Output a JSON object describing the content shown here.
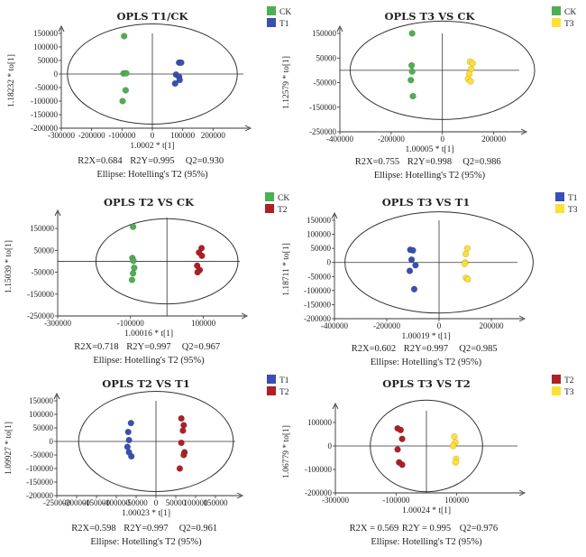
{
  "chart_data": [
    {
      "type": "scatter",
      "title": "OPLS  T1/CK",
      "xlabel": "1.0002 * t[1]",
      "ylabel": "1.18232 * to[1]",
      "xlim": [
        -300000,
        300000
      ],
      "ylim": [
        -200000,
        150000
      ],
      "xticks": [
        -300000,
        -200000,
        -100000,
        0,
        100000,
        200000
      ],
      "xtick_labels": [
        "-300000",
        "-200000",
        "-100000",
        "0",
        "100000",
        "200000"
      ],
      "yticks": [
        150000,
        100000,
        50000,
        0,
        -50000,
        -100000,
        -150000,
        -200000
      ],
      "ytick_labels": [
        "150000",
        "100000",
        "50000",
        "0",
        "-50000",
        "-100000",
        "-150000",
        "-200000"
      ],
      "ellipse": {
        "rx": 280000,
        "ry": 185000
      },
      "stats": [
        "R2X=0.684",
        "R2Y=0.995",
        "Q2=0.930"
      ],
      "ellipse_label": "Ellipse: Hotelling's T2 (95%)",
      "legend_position": "top-right",
      "series": [
        {
          "name": "CK",
          "color": "#4caf50",
          "points": [
            [
              -93000,
              140000
            ],
            [
              -95000,
              2000
            ],
            [
              -86000,
              3000
            ],
            [
              -88000,
              -60000
            ],
            [
              -98000,
              -100000
            ]
          ]
        },
        {
          "name": "T1",
          "color": "#3a4fb5",
          "points": [
            [
              88000,
              42000
            ],
            [
              95000,
              42000
            ],
            [
              78000,
              -2000
            ],
            [
              88000,
              -10000
            ],
            [
              90000,
              -22000
            ],
            [
              75000,
              -35000
            ]
          ]
        }
      ]
    },
    {
      "type": "scatter",
      "title": "OPLS T3 VS CK",
      "xlabel": "1.00005 * t[1]",
      "ylabel": "1.12579 * to[1]",
      "xlim": [
        -400000,
        300000
      ],
      "ylim": [
        -250000,
        150000
      ],
      "xticks": [
        -400000,
        -200000,
        0,
        200000
      ],
      "xtick_labels": [
        "-400000",
        "-200000",
        "0",
        "200000"
      ],
      "yticks": [
        150000,
        50000,
        -50000,
        -150000,
        -250000
      ],
      "ytick_labels": [
        "150000",
        "50000",
        "-50000",
        "-150000",
        "-250000"
      ],
      "ellipse": {
        "rx": 360000,
        "ry": 200000
      },
      "stats": [
        "R2X=0.755",
        "R2Y=0.998",
        "Q2=0.986"
      ],
      "ellipse_label": "Ellipse: Hotelling's T2 (95%)",
      "legend_position": "top-right",
      "series": [
        {
          "name": "CK",
          "color": "#4caf50",
          "points": [
            [
              -118000,
              150000
            ],
            [
              -120000,
              20000
            ],
            [
              -118000,
              -5000
            ],
            [
              -123000,
              -40000
            ],
            [
              -115000,
              -105000
            ]
          ]
        },
        {
          "name": "T3",
          "color": "#ffe033",
          "points": [
            [
              108000,
              35000
            ],
            [
              118000,
              28000
            ],
            [
              112000,
              5000
            ],
            [
              105000,
              -15000
            ],
            [
              100000,
              -35000
            ],
            [
              110000,
              -45000
            ]
          ]
        }
      ]
    },
    {
      "type": "scatter",
      "title": "OPLS T2 VS CK",
      "xlabel": "1.00016 * t[1]",
      "ylabel": "1.15039 * to[1]",
      "xlim": [
        -300000,
        200000
      ],
      "ylim": [
        -250000,
        200000
      ],
      "xticks": [
        -300000,
        -100000,
        100000
      ],
      "xtick_labels": [
        "-300000",
        "-100000",
        "100000"
      ],
      "yticks": [
        150000,
        50000,
        -50000,
        -150000,
        -250000
      ],
      "ytick_labels": [
        "150000",
        "50000",
        "-50000",
        "-150000",
        "-250000"
      ],
      "ellipse": {
        "rx": 195000,
        "ry": 195000
      },
      "stats": [
        "R2X=0.718",
        "R2Y=0.997",
        "Q2=0.967"
      ],
      "ellipse_label": "Ellipse: Hotelling's T2 (95%)",
      "legend_position": "top-right",
      "series": [
        {
          "name": "CK",
          "color": "#4caf50",
          "points": [
            [
              -93000,
              158000
            ],
            [
              -95000,
              15000
            ],
            [
              -92000,
              2000
            ],
            [
              -90000,
              -30000
            ],
            [
              -93000,
              -55000
            ],
            [
              -96000,
              -85000
            ]
          ]
        },
        {
          "name": "T2",
          "color": "#b11f24",
          "points": [
            [
              95000,
              60000
            ],
            [
              88000,
              40000
            ],
            [
              96000,
              25000
            ],
            [
              83000,
              -20000
            ],
            [
              90000,
              -40000
            ],
            [
              84000,
              -50000
            ]
          ]
        }
      ]
    },
    {
      "type": "scatter",
      "title": "OPLS T3 VS T1",
      "xlabel": "1.00019 * t[1]",
      "ylabel": "1.18711 * to[1]",
      "xlim": [
        -400000,
        300000
      ],
      "ylim": [
        -200000,
        150000
      ],
      "xticks": [
        -400000,
        -200000,
        0,
        200000
      ],
      "xtick_labels": [
        "-400000",
        "-200000",
        "0",
        "200000"
      ],
      "yticks": [
        150000,
        100000,
        50000,
        0,
        -50000,
        -100000,
        -150000,
        -200000
      ],
      "ytick_labels": [
        "150000",
        "100000",
        "50000",
        "0",
        "-50000",
        "-100000",
        "-150000",
        "-200000"
      ],
      "ellipse": {
        "rx": 360000,
        "ry": 180000
      },
      "stats": [
        "R2X=0.602",
        "R2Y=0.997",
        "Q2=0.985"
      ],
      "ellipse_label": "Ellipse: Hotelling's T2 (95%)",
      "legend_position": "top-right",
      "series": [
        {
          "name": "T1",
          "color": "#3a4fb5",
          "points": [
            [
              -110000,
              45000
            ],
            [
              -100000,
              43000
            ],
            [
              -105000,
              10000
            ],
            [
              -90000,
              -10000
            ],
            [
              -112000,
              -30000
            ],
            [
              -95000,
              -95000
            ]
          ]
        },
        {
          "name": "T3",
          "color": "#ffe033",
          "points": [
            [
              108000,
              50000
            ],
            [
              102000,
              30000
            ],
            [
              100000,
              0
            ],
            [
              98000,
              -5000
            ],
            [
              103000,
              -55000
            ],
            [
              110000,
              -60000
            ]
          ]
        }
      ]
    },
    {
      "type": "scatter",
      "title": "OPLS T2 VS T1",
      "xlabel": "1.00023 * t[1]",
      "ylabel": "1.09927 * to[1]",
      "xlim": [
        -250000,
        200000
      ],
      "ylim": [
        -200000,
        150000
      ],
      "xticks": [
        -250000,
        -200000,
        -150000,
        -100000,
        -50000,
        0,
        50000,
        100000,
        150000
      ],
      "xtick_labels": [
        "-250000",
        "-200000",
        "-150000",
        "-100000",
        "-50000",
        "0",
        "50000",
        "100000",
        "150000"
      ],
      "yticks": [
        150000,
        100000,
        50000,
        0,
        -50000,
        -100000,
        -150000,
        -200000
      ],
      "ytick_labels": [
        "150000",
        "100000",
        "50000",
        "0",
        "-50000",
        "-100000",
        "-150000",
        "-200000"
      ],
      "ellipse": {
        "rx": 195000,
        "ry": 185000
      },
      "stats": [
        "R2X=0.598",
        "R2Y=0.997",
        "Q2=0.961"
      ],
      "ellipse_label": "Ellipse: Hotelling's T2 (95%)",
      "legend_position": "top-right",
      "series": [
        {
          "name": "T1",
          "color": "#3a4fb5",
          "points": [
            [
              -63000,
              68000
            ],
            [
              -70000,
              35000
            ],
            [
              -68000,
              5000
            ],
            [
              -72000,
              -20000
            ],
            [
              -68000,
              -40000
            ],
            [
              -62000,
              -55000
            ]
          ]
        },
        {
          "name": "T2",
          "color": "#b11f24",
          "points": [
            [
              64000,
              85000
            ],
            [
              70000,
              60000
            ],
            [
              68000,
              40000
            ],
            [
              64000,
              -5000
            ],
            [
              72000,
              -40000
            ],
            [
              70000,
              -50000
            ],
            [
              60000,
              -100000
            ]
          ]
        }
      ]
    },
    {
      "type": "scatter",
      "title": "OPLS T3 VS T2",
      "xlabel": "1.00024 * t[1]",
      "ylabel": "1.06779 * to[1]",
      "xlim": [
        -300000,
        300000
      ],
      "ylim": [
        -200000,
        150000
      ],
      "xticks": [
        -300000,
        -100000,
        100000
      ],
      "xtick_labels": [
        "-300000",
        "-100000",
        "100000"
      ],
      "yticks": [
        100000,
        0,
        -100000,
        -200000
      ],
      "ytick_labels": [
        "100000",
        "0",
        "-100000",
        "-200000"
      ],
      "ellipse": {
        "rx": 185000,
        "ry": 195000
      },
      "stats": [
        "R2X = 0.569",
        "R2Y = 0.995",
        "Q2=0.976"
      ],
      "ellipse_label": "Ellipse: Hotelling's T2 (95%)",
      "legend_position": "top-right",
      "series": [
        {
          "name": "T2",
          "color": "#b11f24",
          "points": [
            [
              -95000,
              75000
            ],
            [
              -85000,
              68000
            ],
            [
              -80000,
              30000
            ],
            [
              -95000,
              -15000
            ],
            [
              -90000,
              -70000
            ],
            [
              -80000,
              -80000
            ]
          ]
        },
        {
          "name": "T3",
          "color": "#ffe033",
          "points": [
            [
              92000,
              40000
            ],
            [
              95000,
              15000
            ],
            [
              88000,
              0
            ],
            [
              98000,
              -55000
            ],
            [
              96000,
              -70000
            ]
          ]
        }
      ]
    }
  ]
}
